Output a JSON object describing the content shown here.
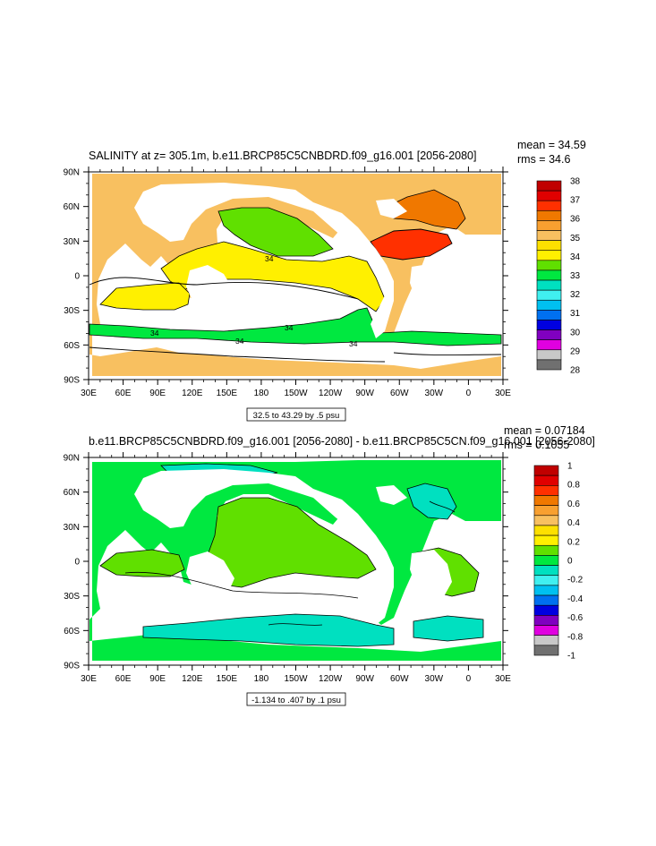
{
  "panels": [
    {
      "title": "SALINITY at z= 305.1m, b.e11.BRCP85C5CNBDRD.f09_g16.001 [2056-2080]",
      "mean": "mean = 34.59",
      "rms": "rms = 34.6",
      "range_label": "32.5 to 43.29 by .5 psu",
      "contour_labels": [
        "34",
        "34",
        "34",
        "34",
        "34"
      ],
      "legend_labels": [
        "38",
        "37",
        "36",
        "35",
        "34",
        "33",
        "32",
        "31",
        "30",
        "29",
        "28"
      ],
      "legend_colors": [
        "#c00000",
        "#e00000",
        "#ff3000",
        "#f07800",
        "#f8a030",
        "#f8c060",
        "#fde000",
        "#fff000",
        "#60e000",
        "#00e840",
        "#00e0c0",
        "#40f0f0",
        "#00c0f0",
        "#0070f0",
        "#0000e0",
        "#8000c0",
        "#e000e0",
        "#c8c8c8",
        "#707070"
      ],
      "fill_colors": {
        "land": "#ffffff",
        "main": "#f8c060",
        "warm": "#fff000",
        "cool": "#60e000",
        "band": "#00e840",
        "hot": "#ff3000",
        "orange": "#f07800"
      }
    },
    {
      "title": "b.e11.BRCP85C5CNBDRD.f09_g16.001 [2056-2080] - b.e11.BRCP85C5CN.f09_g16.001 [2056-2080]",
      "mean": "mean = 0.07184",
      "rms": "rms = 0.1055",
      "range_label": "-1.134 to .407 by .1 psu",
      "legend_labels": [
        "1",
        "0.8",
        "0.6",
        "0.4",
        "0.2",
        "0",
        "-0.2",
        "-0.4",
        "-0.6",
        "-0.8",
        "-1"
      ],
      "legend_colors": [
        "#c00000",
        "#e00000",
        "#ff3000",
        "#f07800",
        "#f8a030",
        "#f8c060",
        "#fde000",
        "#fff000",
        "#60e000",
        "#00e840",
        "#00e0c0",
        "#40f0f0",
        "#00c0f0",
        "#0070f0",
        "#0000e0",
        "#8000c0",
        "#e000e0",
        "#c8c8c8",
        "#707070"
      ],
      "fill_colors": {
        "land": "#ffffff",
        "main": "#00e840",
        "warm": "#60e000",
        "cool": "#00e0c0"
      }
    }
  ],
  "chart_data": [
    {
      "type": "heatmap",
      "title": "SALINITY at z= 305.1m, b.e11.BRCP85C5CNBDRD.f09_g16.001 [2056-2080]",
      "x_tick_labels": [
        "30E",
        "60E",
        "90E",
        "120E",
        "150E",
        "180",
        "150W",
        "120W",
        "90W",
        "60W",
        "30W",
        "0",
        "30E"
      ],
      "y_tick_labels": [
        "90N",
        "60N",
        "30N",
        "0",
        "30S",
        "60S",
        "90S"
      ],
      "xlim": [
        30,
        390
      ],
      "ylim": [
        -90,
        90
      ],
      "colorbar": {
        "min": 28,
        "max": 38,
        "labels": [
          38,
          37,
          36,
          35,
          34,
          33,
          32,
          31,
          30,
          29,
          28
        ]
      },
      "mean": 34.59,
      "rms": 34.6,
      "contour_interval": 0.5,
      "data_range": [
        32.5,
        43.29
      ]
    },
    {
      "type": "heatmap",
      "title": "b.e11.BRCP85C5CNBDRD.f09_g16.001 [2056-2080] - b.e11.BRCP85C5CN.f09_g16.001 [2056-2080]",
      "x_tick_labels": [
        "30E",
        "60E",
        "90E",
        "120E",
        "150E",
        "180",
        "150W",
        "120W",
        "90W",
        "60W",
        "30W",
        "0",
        "30E"
      ],
      "y_tick_labels": [
        "90N",
        "60N",
        "30N",
        "0",
        "30S",
        "60S",
        "90S"
      ],
      "xlim": [
        30,
        390
      ],
      "ylim": [
        -90,
        90
      ],
      "colorbar": {
        "min": -1,
        "max": 1,
        "labels": [
          1,
          0.8,
          0.6,
          0.4,
          0.2,
          0,
          -0.2,
          -0.4,
          -0.6,
          -0.8,
          -1
        ]
      },
      "mean": 0.07184,
      "rms": 0.1055,
      "contour_interval": 0.1,
      "data_range": [
        -1.134,
        0.407
      ]
    }
  ]
}
